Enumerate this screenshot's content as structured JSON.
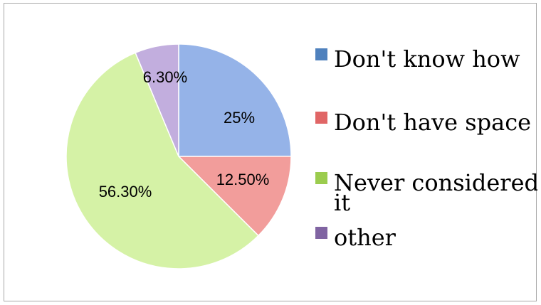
{
  "chart_data": {
    "type": "pie",
    "slices": [
      {
        "label": "Don't know how",
        "value": 25,
        "display": "25%",
        "color": "#95b3e8",
        "legend_color": "#4f81bd"
      },
      {
        "label": "Don't have space",
        "value": 12.5,
        "display": "12.50%",
        "color": "#f29d9b",
        "legend_color": "#e06666"
      },
      {
        "label": "Never considered it",
        "value": 56.3,
        "display": "56.30%",
        "color": "#d5f2a6",
        "legend_color": "#9bcc4e"
      },
      {
        "label": "other",
        "value": 6.3,
        "display": "6.30%",
        "color": "#c2aede",
        "legend_color": "#8064a2"
      }
    ],
    "legend": {
      "placement": "right",
      "entries": [
        {
          "lines": [
            "Don't know how"
          ]
        },
        {
          "lines": [
            "Don't have space"
          ]
        },
        {
          "lines": [
            "Never considered",
            "it"
          ]
        },
        {
          "lines": [
            "other"
          ]
        }
      ]
    }
  }
}
